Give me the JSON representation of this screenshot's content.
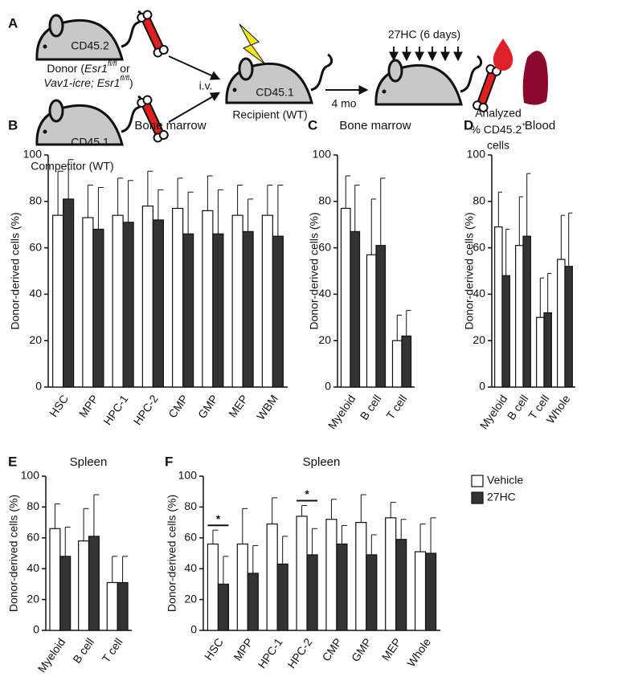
{
  "diagram": {
    "panel": "A",
    "donor_mouse": "CD45.2",
    "donor_label": [
      [
        "Donor (",
        "Esr1",
        "fl/fl",
        " or"
      ],
      [
        "Vav1-icre; Esr1",
        "fl/fl",
        ")"
      ]
    ],
    "competitor_mouse": "CD45.1",
    "competitor_label": "Competitor (WT)",
    "route": "i.v.",
    "recipient_mouse": "CD45.1",
    "recipient_label": "Recipient (WT)",
    "interval": "4 mo",
    "treatment": "27HC (6 days)",
    "readout": [
      "Analyzed",
      "% CD45.2",
      "+",
      "cells"
    ]
  },
  "chart_data": [
    {
      "type": "bar",
      "panel": "B",
      "title": "Bone marrow",
      "ylabel": "Donor-derived cells (%)",
      "categories": [
        "HSC",
        "MPP",
        "HPC-1",
        "HPC-2",
        "CMP",
        "GMP",
        "MEP",
        "WBM"
      ],
      "series": [
        {
          "color": "#ffffff",
          "values": [
            74,
            73,
            74,
            78,
            77,
            76,
            74,
            74
          ],
          "errors": [
            19,
            14,
            16,
            15,
            13,
            15,
            13,
            13
          ]
        },
        {
          "color": "#333333",
          "values": [
            81,
            68,
            71,
            72,
            66,
            66,
            67,
            65
          ],
          "errors": [
            17,
            18,
            18,
            13,
            18,
            19,
            14,
            22
          ]
        }
      ],
      "ylim": [
        0,
        100
      ],
      "yticks": [
        0,
        20,
        40,
        60,
        80,
        100
      ]
    },
    {
      "type": "bar",
      "panel": "C",
      "title": "Bone marrow",
      "ylabel": "Donor-derived cells (%)",
      "categories": [
        "Myeloid",
        "B cell",
        "T cell"
      ],
      "series": [
        {
          "color": "#ffffff",
          "values": [
            77,
            57,
            20
          ],
          "errors": [
            14,
            24,
            11
          ]
        },
        {
          "color": "#333333",
          "values": [
            67,
            61,
            22
          ],
          "errors": [
            20,
            29,
            11
          ]
        }
      ],
      "ylim": [
        0,
        100
      ],
      "yticks": [
        0,
        20,
        40,
        60,
        80,
        100
      ]
    },
    {
      "type": "bar",
      "panel": "D",
      "title": "Blood",
      "ylabel": "Donor-derived cells (%)",
      "categories": [
        "Myeloid",
        "B cell",
        "T cell",
        "Whole"
      ],
      "series": [
        {
          "color": "#ffffff",
          "values": [
            69,
            61,
            30,
            55
          ],
          "errors": [
            15,
            21,
            17,
            19
          ]
        },
        {
          "color": "#333333",
          "values": [
            48,
            65,
            32,
            52
          ],
          "errors": [
            20,
            27,
            17,
            23
          ]
        }
      ],
      "ylim": [
        0,
        100
      ],
      "yticks": [
        0,
        20,
        40,
        60,
        80,
        100
      ]
    },
    {
      "type": "bar",
      "panel": "E",
      "title": "Spleen",
      "ylabel": "Donor-derived cells (%)",
      "categories": [
        "Myeloid",
        "B cell",
        "T cell"
      ],
      "series": [
        {
          "color": "#ffffff",
          "values": [
            66,
            58,
            31
          ],
          "errors": [
            16,
            21,
            17
          ]
        },
        {
          "color": "#333333",
          "values": [
            48,
            61,
            31
          ],
          "errors": [
            19,
            27,
            17
          ]
        }
      ],
      "ylim": [
        0,
        100
      ],
      "yticks": [
        0,
        20,
        40,
        60,
        80,
        100
      ]
    },
    {
      "type": "bar",
      "panel": "F",
      "title": "Spleen",
      "ylabel": "Donor-derived cells (%)",
      "categories": [
        "HSC",
        "MPP",
        "HPC-1",
        "HPC-2",
        "CMP",
        "GMP",
        "MEP",
        "Whole"
      ],
      "series": [
        {
          "name": "Vehicle",
          "color": "#ffffff",
          "values": [
            56,
            56,
            69,
            74,
            72,
            70,
            73,
            51
          ],
          "errors": [
            9,
            23,
            17,
            7,
            13,
            18,
            10,
            18
          ]
        },
        {
          "name": "27HC",
          "color": "#333333",
          "values": [
            30,
            37,
            43,
            49,
            56,
            49,
            59,
            50
          ],
          "errors": [
            18,
            18,
            18,
            17,
            12,
            13,
            13,
            23
          ]
        }
      ],
      "annotations": [
        {
          "text": "*",
          "x": "HSC"
        },
        {
          "text": "*",
          "x": "HPC-2"
        }
      ],
      "ylim": [
        0,
        100
      ],
      "yticks": [
        0,
        20,
        40,
        60,
        80,
        100
      ]
    }
  ]
}
